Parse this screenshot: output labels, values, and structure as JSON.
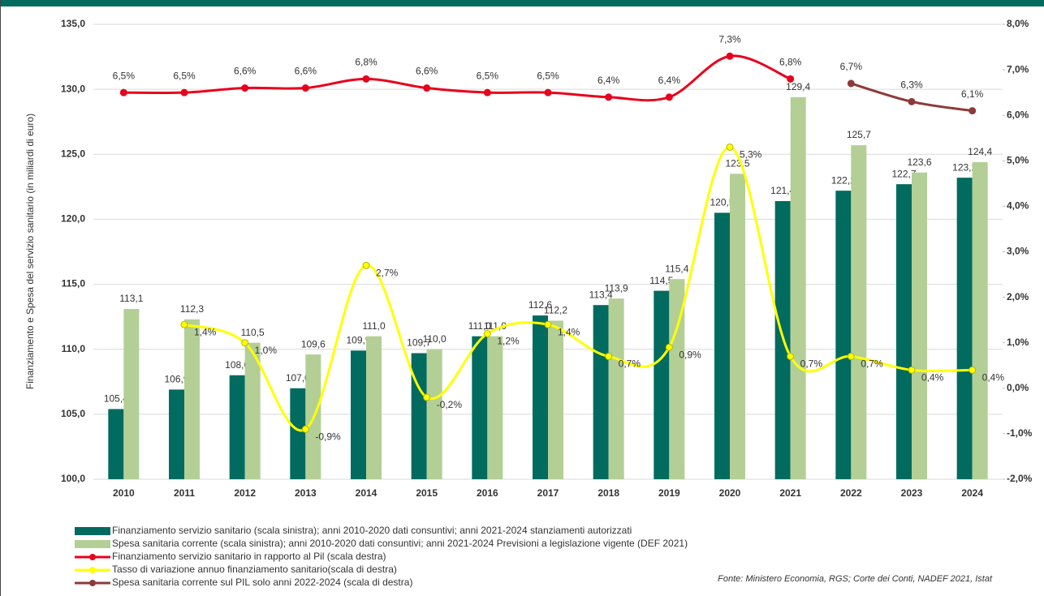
{
  "chart_data": {
    "type": "bar",
    "y_axis_label": "Finanziamento e Spesa del servizio sanitario (in miliardi di euro)",
    "source": "Fonte: Ministero Economia, RGS; Corte dei Conti, NADEF 2021, Istat",
    "categories": [
      "2010",
      "2011",
      "2012",
      "2013",
      "2014",
      "2015",
      "2016",
      "2017",
      "2018",
      "2019",
      "2020",
      "2021",
      "2022",
      "2023",
      "2024"
    ],
    "ylim": [
      100,
      135
    ],
    "yticks": [
      {
        "value": 100,
        "label": "100,0"
      },
      {
        "value": 105,
        "label": "105,0"
      },
      {
        "value": 110,
        "label": "110,0"
      },
      {
        "value": 115,
        "label": "115,0"
      },
      {
        "value": 120,
        "label": "120,0"
      },
      {
        "value": 125,
        "label": "125,0"
      },
      {
        "value": 130,
        "label": "130,0"
      },
      {
        "value": 135,
        "label": "135,0"
      }
    ],
    "y2lim": [
      -2,
      8
    ],
    "y2ticks": [
      {
        "value": -2,
        "label": "-2,0%"
      },
      {
        "value": -1,
        "label": "-1,0%"
      },
      {
        "value": 0,
        "label": "0,0%"
      },
      {
        "value": 1,
        "label": "1,0%"
      },
      {
        "value": 2,
        "label": "2,0%"
      },
      {
        "value": 3,
        "label": "3,0%"
      },
      {
        "value": 4,
        "label": "4,0%"
      },
      {
        "value": 5,
        "label": "5,0%"
      },
      {
        "value": 6,
        "label": "6,0%"
      },
      {
        "value": 7,
        "label": "7,0%"
      },
      {
        "value": 8,
        "label": "8,0%"
      }
    ],
    "grid": true,
    "legend": "bottom-left",
    "series": [
      {
        "name": "Finanziamento servizio sanitario (scala sinistra); anni 2010-2020 dati consuntivi; anni 2021-2024 stanziamenti autorizzati",
        "type": "bar",
        "color": "#006b5e",
        "values": [
          105.4,
          106.9,
          108.0,
          107.0,
          109.9,
          109.7,
          111.0,
          112.6,
          113.4,
          114.5,
          120.5,
          121.4,
          122.2,
          122.7,
          123.2
        ],
        "value_labels": [
          "105,4",
          "106,9",
          "108,0",
          "107,0",
          "109,9",
          "109,7",
          "111,0",
          "112,6",
          "113,4",
          "114,5",
          "120,5",
          "121,4",
          "122,2",
          "122,7",
          "123,2"
        ]
      },
      {
        "name": "Spesa sanitaria corrente (scala sinistra); anni 2010-2020 dati consuntivi; anni 2021-2024 Previsioni a legislazione vigente (DEF 2021)",
        "type": "bar",
        "color": "#b3cf96",
        "values": [
          113.1,
          112.3,
          110.5,
          109.6,
          111.0,
          110.0,
          111.0,
          112.2,
          113.9,
          115.4,
          123.5,
          129.4,
          125.7,
          123.6,
          124.4
        ],
        "value_labels": [
          "113,1",
          "112,3",
          "110,5",
          "109,6",
          "111,0",
          "110,0",
          "111,0",
          "112,2",
          "113,9",
          "115,4",
          "123,5",
          "129,4",
          "125,7",
          "123,6",
          "124,4"
        ]
      },
      {
        "name": "Finanziamento servizio sanitario in rapporto al Pil (scala destra)",
        "type": "line",
        "axis": "y2",
        "color": "#e8001c",
        "values": [
          6.5,
          6.5,
          6.6,
          6.6,
          6.8,
          6.6,
          6.5,
          6.5,
          6.4,
          6.4,
          7.3,
          6.8,
          null,
          null,
          null
        ],
        "value_labels": [
          "6,5%",
          "6,5%",
          "6,6%",
          "6,6%",
          "6,8%",
          "6,6%",
          "6,5%",
          "6,5%",
          "6,4%",
          "6,4%",
          "7,3%",
          "6,8%",
          null,
          null,
          null
        ]
      },
      {
        "name": "Tasso di variazione annuo finanziamento sanitario(scala di destra)",
        "type": "line",
        "axis": "y2",
        "color": "#ffff00",
        "values": [
          null,
          1.4,
          1.0,
          -0.9,
          2.7,
          -0.2,
          1.2,
          1.4,
          0.7,
          0.9,
          5.3,
          0.7,
          0.7,
          0.4,
          0.4
        ],
        "value_labels": [
          null,
          "1,4%",
          "1,0%",
          "-0,9%",
          "2,7%",
          "-0,2%",
          "1,2%",
          "1,4%",
          "0,7%",
          "0,9%",
          "5,3%",
          "0,7%",
          "0,7%",
          "0,4%",
          "0,4%"
        ]
      },
      {
        "name": "Spesa sanitaria corrente sul PIL solo anni 2022-2024 (scala di destra)",
        "type": "line",
        "axis": "y2",
        "color": "#8e3a3a",
        "values": [
          null,
          null,
          null,
          null,
          null,
          null,
          null,
          null,
          null,
          null,
          null,
          null,
          6.7,
          6.3,
          6.1
        ],
        "value_labels": [
          null,
          null,
          null,
          null,
          null,
          null,
          null,
          null,
          null,
          null,
          null,
          null,
          "6,7%",
          "6,3%",
          "6,1%"
        ]
      }
    ]
  }
}
